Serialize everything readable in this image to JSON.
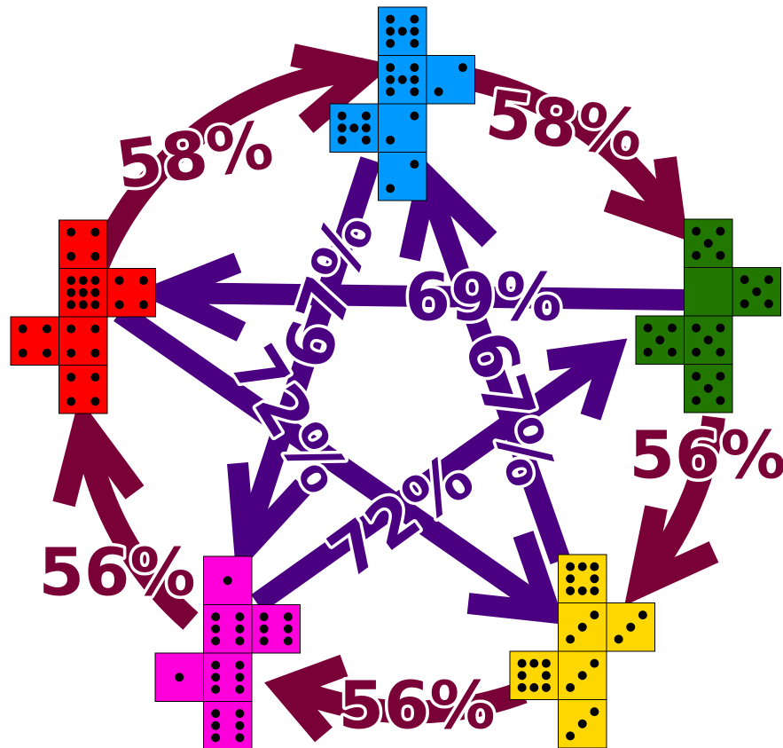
{
  "dice": [
    {
      "color": "#ff0000",
      "faces": [
        4,
        9,
        4,
        4,
        4,
        4
      ]
    },
    {
      "color": "#0099ff",
      "faces": [
        7,
        7,
        2,
        7,
        2,
        2
      ]
    },
    {
      "color": "#227700",
      "faces": [
        5,
        0,
        5,
        5,
        5,
        5
      ]
    },
    {
      "color": "#ffd700",
      "faces": [
        8,
        3,
        3,
        8,
        3,
        3
      ]
    },
    {
      "color": "#ff00dd",
      "faces": [
        1,
        6,
        6,
        1,
        6,
        6
      ]
    }
  ],
  "outer_labels": [
    "58%",
    "58%",
    "56%",
    "56%",
    "56%"
  ],
  "inner_labels": [
    "69%",
    "67%",
    "67%",
    "72%",
    "72%"
  ]
}
